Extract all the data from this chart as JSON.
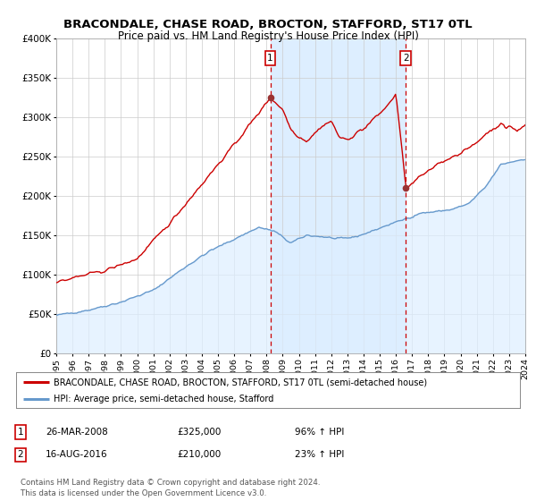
{
  "title": "BRACONDALE, CHASE ROAD, BROCTON, STAFFORD, ST17 0TL",
  "subtitle": "Price paid vs. HM Land Registry's House Price Index (HPI)",
  "legend_line1": "BRACONDALE, CHASE ROAD, BROCTON, STAFFORD, ST17 0TL (semi-detached house)",
  "legend_line2": "HPI: Average price, semi-detached house, Stafford",
  "sale1_date": "26-MAR-2008",
  "sale1_price": 325000,
  "sale1_hpi": "96% ↑ HPI",
  "sale2_date": "16-AUG-2016",
  "sale2_price": 210000,
  "sale2_hpi": "23% ↑ HPI",
  "footer": "Contains HM Land Registry data © Crown copyright and database right 2024.\nThis data is licensed under the Open Government Licence v3.0.",
  "price_line_color": "#cc0000",
  "hpi_line_color": "#6699cc",
  "hpi_fill_color": "#ddeeff",
  "vline_color": "#cc0000",
  "marker_color": "#993333",
  "background_color": "#ffffff",
  "grid_color": "#cccccc",
  "ylim": [
    0,
    400000
  ],
  "yticks": [
    0,
    50000,
    100000,
    150000,
    200000,
    250000,
    300000,
    350000,
    400000
  ],
  "ytick_labels": [
    "£0",
    "£50K",
    "£100K",
    "£150K",
    "£200K",
    "£250K",
    "£300K",
    "£350K",
    "£400K"
  ],
  "sale1_x": 2008.23,
  "sale2_x": 2016.62,
  "hpi_anchors_x": [
    1995.0,
    1997.0,
    1999.0,
    2001.0,
    2003.0,
    2004.5,
    2006.0,
    2007.5,
    2008.5,
    2009.5,
    2010.5,
    2011.5,
    2012.5,
    2013.5,
    2014.5,
    2015.5,
    2016.5,
    2017.5,
    2018.5,
    2019.5,
    2020.5,
    2021.5,
    2022.5,
    2023.5,
    2024.0
  ],
  "hpi_anchors_y": [
    48000,
    55000,
    65000,
    80000,
    110000,
    130000,
    145000,
    160000,
    155000,
    140000,
    150000,
    148000,
    145000,
    148000,
    155000,
    163000,
    170000,
    178000,
    180000,
    183000,
    190000,
    210000,
    240000,
    245000,
    247000
  ],
  "price_anchors_x": [
    1995.0,
    1996.5,
    1998.0,
    2000.0,
    2002.0,
    2004.0,
    2006.0,
    2007.5,
    2008.23,
    2009.0,
    2009.5,
    2010.0,
    2010.5,
    2011.0,
    2011.5,
    2012.0,
    2012.5,
    2013.0,
    2013.5,
    2014.0,
    2014.5,
    2015.0,
    2015.5,
    2016.0,
    2016.62,
    2017.0,
    2017.5,
    2018.0,
    2018.5,
    2019.0,
    2019.5,
    2020.0,
    2020.5,
    2021.0,
    2021.5,
    2022.0,
    2022.5,
    2022.8,
    2023.0,
    2023.5,
    2024.0
  ],
  "price_anchors_y": [
    90000,
    98000,
    105000,
    120000,
    165000,
    215000,
    265000,
    305000,
    325000,
    310000,
    285000,
    275000,
    270000,
    280000,
    290000,
    295000,
    275000,
    270000,
    280000,
    285000,
    295000,
    305000,
    315000,
    330000,
    210000,
    215000,
    225000,
    230000,
    240000,
    245000,
    250000,
    255000,
    260000,
    268000,
    278000,
    285000,
    292000,
    285000,
    290000,
    282000,
    290000
  ]
}
